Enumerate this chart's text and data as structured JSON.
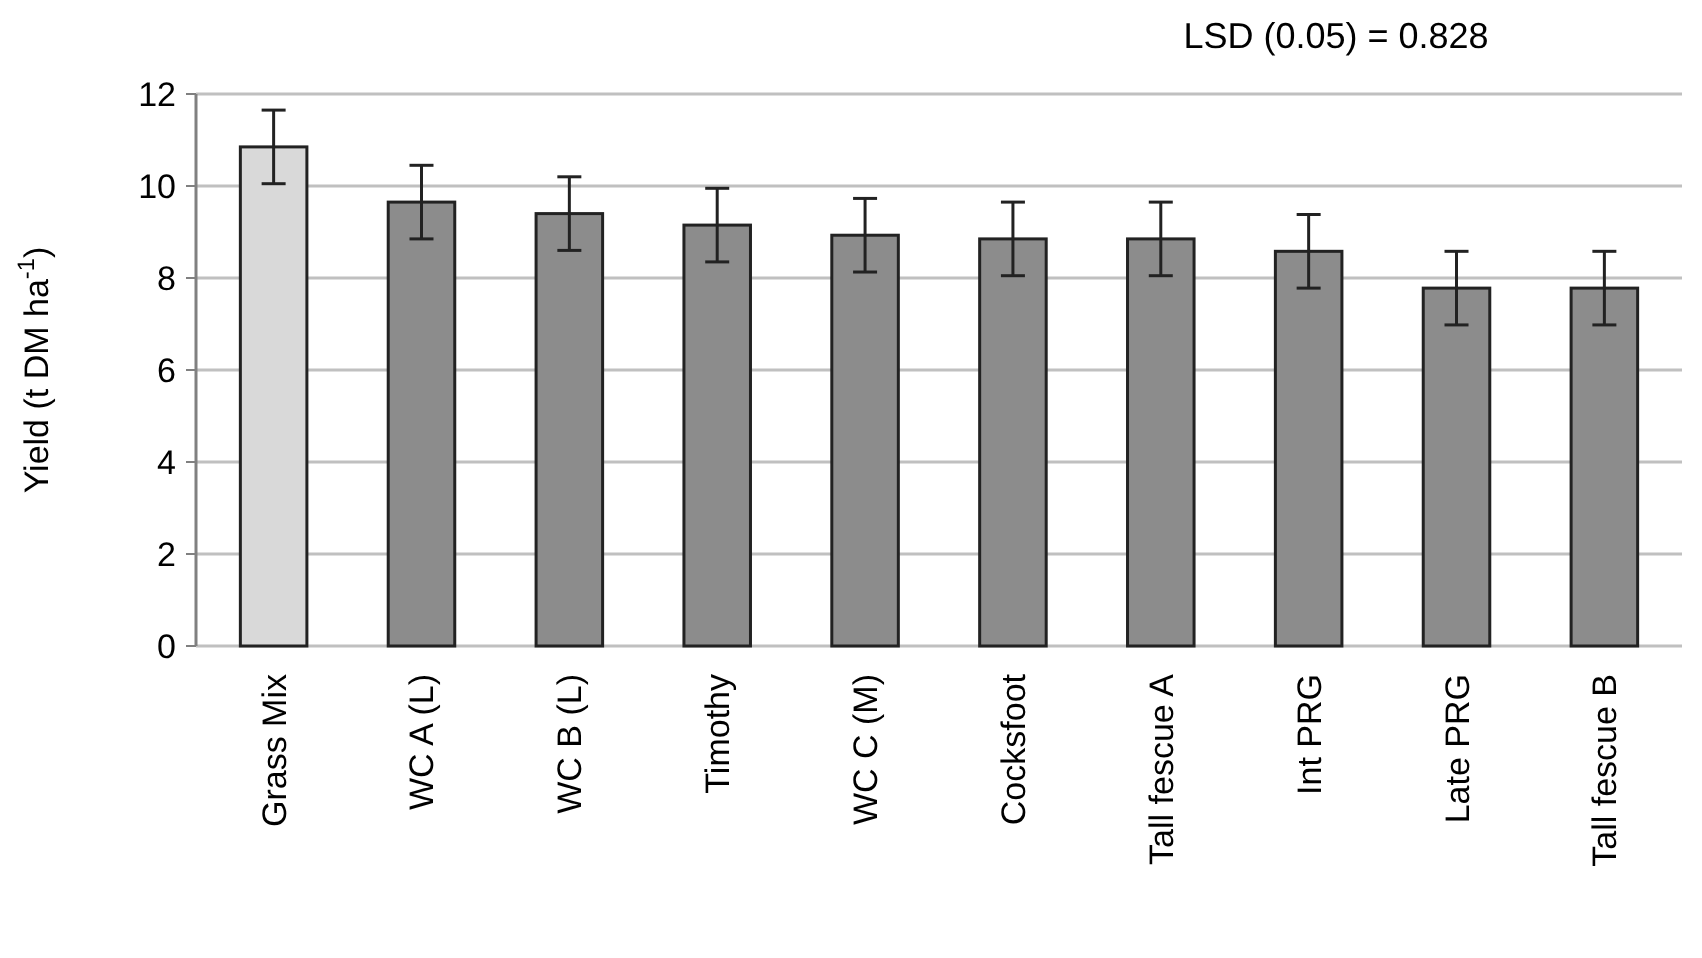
{
  "chart_data": {
    "type": "bar",
    "ylabel": "Yield (t DM ha$^{-1}$)",
    "categories": [
      "Grass Mix",
      "WC A (L)",
      "WC B (L)",
      "Timothy",
      "WC C (M)",
      "Cocksfoot",
      "Tall fescue A",
      "Int PRG",
      "Late PRG",
      "Tall fescue B"
    ],
    "values": [
      10.85,
      9.65,
      9.4,
      9.15,
      8.93,
      8.85,
      8.85,
      8.58,
      7.78,
      7.78
    ],
    "errors": [
      0.8,
      0.8,
      0.8,
      0.8,
      0.8,
      0.8,
      0.8,
      0.8,
      0.8,
      0.8
    ],
    "colors": [
      "#d9d9d9",
      "#8c8c8c",
      "#8c8c8c",
      "#8c8c8c",
      "#8c8c8c",
      "#8c8c8c",
      "#8c8c8c",
      "#8c8c8c",
      "#8c8c8c",
      "#8c8c8c"
    ],
    "ylim": [
      0,
      12
    ],
    "yticks": [
      0,
      2,
      4,
      6,
      8,
      10,
      12
    ],
    "grid": "y",
    "annotations": [
      "LSD (0.05) = 0.828"
    ]
  }
}
